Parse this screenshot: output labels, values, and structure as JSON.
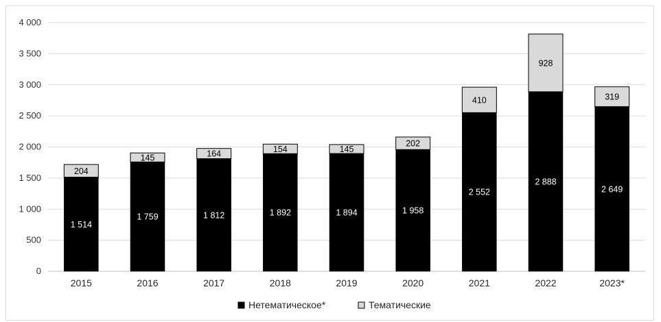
{
  "chart_data": {
    "type": "bar",
    "stacked": true,
    "categories": [
      "2015",
      "2016",
      "2017",
      "2018",
      "2019",
      "2020",
      "2021",
      "2022",
      "2023*"
    ],
    "series": [
      {
        "name": "Нетематическое*",
        "values": [
          1514,
          1759,
          1812,
          1892,
          1894,
          1958,
          2552,
          2888,
          2649
        ],
        "labels": [
          "1 514",
          "1 759",
          "1 812",
          "1 892",
          "1 894",
          "1 958",
          "2 552",
          "2 888",
          "2 649"
        ],
        "color": "#000000",
        "label_color": "#ffffff"
      },
      {
        "name": "Тематические",
        "values": [
          204,
          145,
          164,
          154,
          145,
          202,
          410,
          928,
          319
        ],
        "labels": [
          "204",
          "145",
          "164",
          "154",
          "145",
          "202",
          "410",
          "928",
          "319"
        ],
        "color": "#d9d9d9",
        "label_color": "#000000"
      }
    ],
    "ylim": [
      0,
      4000
    ],
    "yticks": [
      0,
      500,
      1000,
      1500,
      2000,
      2500,
      3000,
      3500,
      4000
    ],
    "ytick_labels": [
      "0",
      "500",
      "1 000",
      "1 500",
      "2 000",
      "2 500",
      "3 000",
      "3 500",
      "4 000"
    ],
    "grid": true,
    "legend_position": "bottom"
  }
}
